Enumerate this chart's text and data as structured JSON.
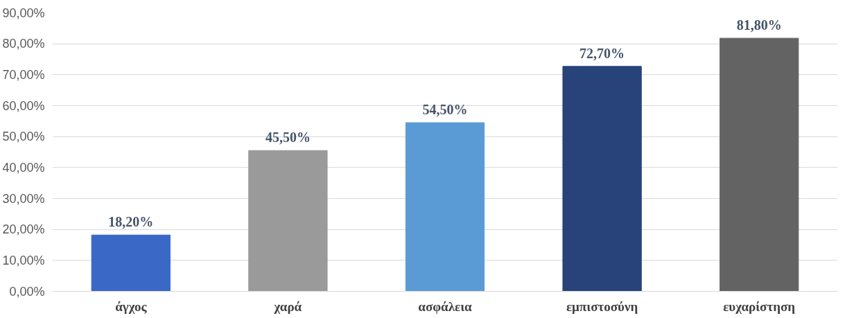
{
  "chart_data": {
    "type": "bar",
    "categories": [
      "άγχος",
      "χαρά",
      "ασφάλεια",
      "εμπιστοσύνη",
      "ευχαρίστηση"
    ],
    "values": [
      18.2,
      45.5,
      54.5,
      72.7,
      81.8
    ],
    "colors": [
      "#3a68c6",
      "#9a9a9a",
      "#5b9bd5",
      "#27437a",
      "#636363"
    ],
    "value_labels": [
      "18,20%",
      "45,50%",
      "54,50%",
      "72,70%",
      "81,80%"
    ],
    "ylim": [
      0,
      90
    ],
    "yticks": [
      {
        "value": 0,
        "label": "0,00%"
      },
      {
        "value": 10,
        "label": "10,00%"
      },
      {
        "value": 20,
        "label": "20,00%"
      },
      {
        "value": 30,
        "label": "30,00%"
      },
      {
        "value": 40,
        "label": "40,00%"
      },
      {
        "value": 50,
        "label": "50,00%"
      },
      {
        "value": 60,
        "label": "60,00%"
      },
      {
        "value": 70,
        "label": "70,00%"
      },
      {
        "value": 80,
        "label": "80,00%"
      },
      {
        "value": 90,
        "label": "90,00%"
      }
    ],
    "grid": "y"
  }
}
